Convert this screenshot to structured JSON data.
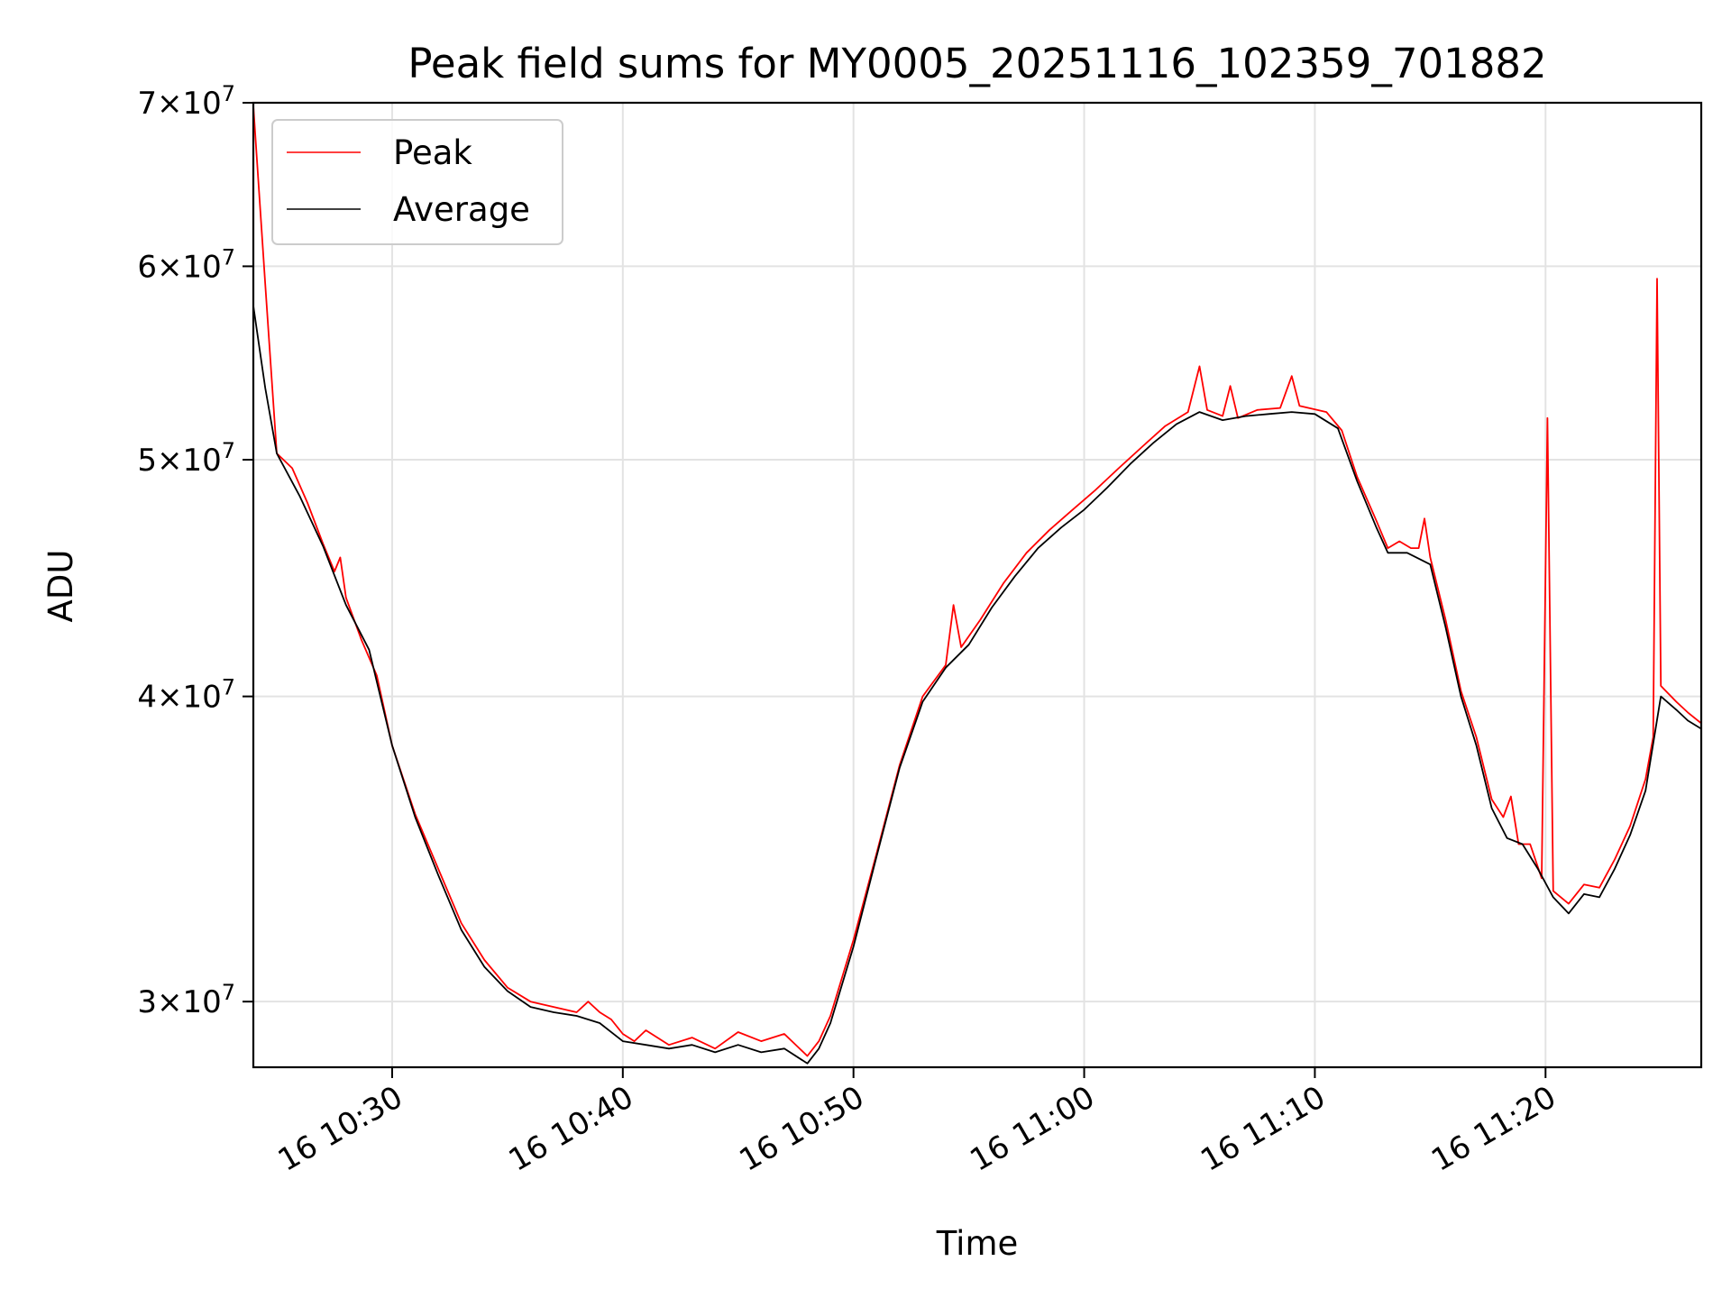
{
  "chart_data": {
    "type": "line",
    "title": "Peak field sums for MY0005_20251116_102359_701882",
    "xlabel": "Time",
    "ylabel": "ADU",
    "x_scale": "time",
    "y_scale": "log",
    "xlim": [
      "2025-11-16 10:23:59",
      "2025-11-16 11:26:45"
    ],
    "ylim": [
      28200000,
      70000000
    ],
    "x_ticks": [
      {
        "t": "2025-11-16 10:30:00",
        "label": "16 10:30"
      },
      {
        "t": "2025-11-16 10:40:00",
        "label": "16 10:40"
      },
      {
        "t": "2025-11-16 10:50:00",
        "label": "16 10:50"
      },
      {
        "t": "2025-11-16 11:00:00",
        "label": "16 11:00"
      },
      {
        "t": "2025-11-16 11:10:00",
        "label": "16 11:10"
      },
      {
        "t": "2025-11-16 11:20:00",
        "label": "16 11:20"
      }
    ],
    "y_ticks": [
      {
        "value": 30000000,
        "mant": "3",
        "exp": "7"
      },
      {
        "value": 40000000,
        "mant": "4",
        "exp": "7"
      },
      {
        "value": 50000000,
        "mant": "5",
        "exp": "7"
      },
      {
        "value": 60000000,
        "mant": "6",
        "exp": "7"
      },
      {
        "value": 70000000,
        "mant": "7",
        "exp": "7"
      }
    ],
    "grid": true,
    "legend": "top-left",
    "series": [
      {
        "name": "Peak",
        "color": "#ff0000",
        "points": [
          [
            "2025-11-16 10:23:59",
            69800000
          ],
          [
            "2025-11-16 10:24:30",
            59000000
          ],
          [
            "2025-11-16 10:25:00",
            50300000
          ],
          [
            "2025-11-16 10:25:40",
            49600000
          ],
          [
            "2025-11-16 10:26:20",
            48000000
          ],
          [
            "2025-11-16 10:27:00",
            46200000
          ],
          [
            "2025-11-16 10:27:30",
            45000000
          ],
          [
            "2025-11-16 10:27:45",
            45600000
          ],
          [
            "2025-11-16 10:28:00",
            43900000
          ],
          [
            "2025-11-16 10:28:40",
            42200000
          ],
          [
            "2025-11-16 10:29:20",
            40800000
          ],
          [
            "2025-11-16 10:30:00",
            38200000
          ],
          [
            "2025-11-16 10:31:00",
            35800000
          ],
          [
            "2025-11-16 10:32:00",
            34000000
          ],
          [
            "2025-11-16 10:33:00",
            32300000
          ],
          [
            "2025-11-16 10:34:00",
            31200000
          ],
          [
            "2025-11-16 10:35:00",
            30400000
          ],
          [
            "2025-11-16 10:36:00",
            30000000
          ],
          [
            "2025-11-16 10:37:00",
            29850000
          ],
          [
            "2025-11-16 10:38:00",
            29700000
          ],
          [
            "2025-11-16 10:38:30",
            30000000
          ],
          [
            "2025-11-16 10:39:00",
            29700000
          ],
          [
            "2025-11-16 10:39:30",
            29500000
          ],
          [
            "2025-11-16 10:40:00",
            29100000
          ],
          [
            "2025-11-16 10:40:30",
            28900000
          ],
          [
            "2025-11-16 10:41:00",
            29200000
          ],
          [
            "2025-11-16 10:42:00",
            28800000
          ],
          [
            "2025-11-16 10:43:00",
            29000000
          ],
          [
            "2025-11-16 10:44:00",
            28700000
          ],
          [
            "2025-11-16 10:45:00",
            29150000
          ],
          [
            "2025-11-16 10:46:00",
            28900000
          ],
          [
            "2025-11-16 10:47:00",
            29100000
          ],
          [
            "2025-11-16 10:48:00",
            28500000
          ],
          [
            "2025-11-16 10:48:30",
            28900000
          ],
          [
            "2025-11-16 10:49:00",
            29600000
          ],
          [
            "2025-11-16 10:50:00",
            31800000
          ],
          [
            "2025-11-16 10:51:00",
            34500000
          ],
          [
            "2025-11-16 10:52:00",
            37500000
          ],
          [
            "2025-11-16 10:53:00",
            40000000
          ],
          [
            "2025-11-16 10:54:00",
            41200000
          ],
          [
            "2025-11-16 10:54:20",
            43600000
          ],
          [
            "2025-11-16 10:54:40",
            41900000
          ],
          [
            "2025-11-16 10:55:30",
            43000000
          ],
          [
            "2025-11-16 10:56:30",
            44500000
          ],
          [
            "2025-11-16 10:57:30",
            45800000
          ],
          [
            "2025-11-16 10:58:30",
            46800000
          ],
          [
            "2025-11-16 10:59:30",
            47700000
          ],
          [
            "2025-11-16 11:00:30",
            48600000
          ],
          [
            "2025-11-16 11:01:30",
            49600000
          ],
          [
            "2025-11-16 11:02:30",
            50600000
          ],
          [
            "2025-11-16 11:03:30",
            51600000
          ],
          [
            "2025-11-16 11:04:30",
            52300000
          ],
          [
            "2025-11-16 11:05:00",
            54600000
          ],
          [
            "2025-11-16 11:05:20",
            52400000
          ],
          [
            "2025-11-16 11:06:00",
            52100000
          ],
          [
            "2025-11-16 11:06:20",
            53600000
          ],
          [
            "2025-11-16 11:06:40",
            52000000
          ],
          [
            "2025-11-16 11:07:30",
            52400000
          ],
          [
            "2025-11-16 11:08:30",
            52500000
          ],
          [
            "2025-11-16 11:09:00",
            54100000
          ],
          [
            "2025-11-16 11:09:20",
            52600000
          ],
          [
            "2025-11-16 11:10:30",
            52300000
          ],
          [
            "2025-11-16 11:11:10",
            51400000
          ],
          [
            "2025-11-16 11:11:50",
            49200000
          ],
          [
            "2025-11-16 11:12:40",
            47200000
          ],
          [
            "2025-11-16 11:13:10",
            46000000
          ],
          [
            "2025-11-16 11:13:40",
            46300000
          ],
          [
            "2025-11-16 11:14:10",
            46000000
          ],
          [
            "2025-11-16 11:14:30",
            46000000
          ],
          [
            "2025-11-16 11:14:45",
            47300000
          ],
          [
            "2025-11-16 11:15:00",
            45600000
          ],
          [
            "2025-11-16 11:15:40",
            43000000
          ],
          [
            "2025-11-16 11:16:20",
            40200000
          ],
          [
            "2025-11-16 11:17:00",
            38500000
          ],
          [
            "2025-11-16 11:17:40",
            36300000
          ],
          [
            "2025-11-16 11:18:10",
            35700000
          ],
          [
            "2025-11-16 11:18:30",
            36400000
          ],
          [
            "2025-11-16 11:18:50",
            34800000
          ],
          [
            "2025-11-16 11:19:20",
            34800000
          ],
          [
            "2025-11-16 11:19:50",
            33700000
          ],
          [
            "2025-11-16 11:20:05",
            52000000
          ],
          [
            "2025-11-16 11:20:20",
            33300000
          ],
          [
            "2025-11-16 11:21:00",
            32900000
          ],
          [
            "2025-11-16 11:21:40",
            33500000
          ],
          [
            "2025-11-16 11:22:20",
            33400000
          ],
          [
            "2025-11-16 11:23:00",
            34300000
          ],
          [
            "2025-11-16 11:23:40",
            35400000
          ],
          [
            "2025-11-16 11:24:20",
            37000000
          ],
          [
            "2025-11-16 11:24:40",
            38500000
          ],
          [
            "2025-11-16 11:24:50",
            59300000
          ],
          [
            "2025-11-16 11:25:00",
            40400000
          ],
          [
            "2025-11-16 11:25:40",
            39800000
          ],
          [
            "2025-11-16 11:26:10",
            39400000
          ],
          [
            "2025-11-16 11:26:45",
            39000000
          ]
        ]
      },
      {
        "name": "Average",
        "color": "#000000",
        "points": [
          [
            "2025-11-16 10:23:59",
            57800000
          ],
          [
            "2025-11-16 10:24:30",
            53500000
          ],
          [
            "2025-11-16 10:25:00",
            50300000
          ],
          [
            "2025-11-16 10:26:00",
            48300000
          ],
          [
            "2025-11-16 10:27:00",
            46100000
          ],
          [
            "2025-11-16 10:28:00",
            43600000
          ],
          [
            "2025-11-16 10:29:00",
            41800000
          ],
          [
            "2025-11-16 10:30:00",
            38200000
          ],
          [
            "2025-11-16 10:31:00",
            35700000
          ],
          [
            "2025-11-16 10:32:00",
            33800000
          ],
          [
            "2025-11-16 10:33:00",
            32100000
          ],
          [
            "2025-11-16 10:34:00",
            31000000
          ],
          [
            "2025-11-16 10:35:00",
            30300000
          ],
          [
            "2025-11-16 10:36:00",
            29850000
          ],
          [
            "2025-11-16 10:37:00",
            29700000
          ],
          [
            "2025-11-16 10:38:00",
            29600000
          ],
          [
            "2025-11-16 10:39:00",
            29400000
          ],
          [
            "2025-11-16 10:40:00",
            28900000
          ],
          [
            "2025-11-16 10:41:00",
            28800000
          ],
          [
            "2025-11-16 10:42:00",
            28700000
          ],
          [
            "2025-11-16 10:43:00",
            28800000
          ],
          [
            "2025-11-16 10:44:00",
            28600000
          ],
          [
            "2025-11-16 10:45:00",
            28800000
          ],
          [
            "2025-11-16 10:46:00",
            28600000
          ],
          [
            "2025-11-16 10:47:00",
            28700000
          ],
          [
            "2025-11-16 10:48:00",
            28300000
          ],
          [
            "2025-11-16 10:48:30",
            28700000
          ],
          [
            "2025-11-16 10:49:00",
            29400000
          ],
          [
            "2025-11-16 10:50:00",
            31600000
          ],
          [
            "2025-11-16 10:51:00",
            34400000
          ],
          [
            "2025-11-16 10:52:00",
            37400000
          ],
          [
            "2025-11-16 10:53:00",
            39800000
          ],
          [
            "2025-11-16 10:54:00",
            41100000
          ],
          [
            "2025-11-16 10:55:00",
            42000000
          ],
          [
            "2025-11-16 10:56:00",
            43500000
          ],
          [
            "2025-11-16 10:57:00",
            44800000
          ],
          [
            "2025-11-16 10:58:00",
            46000000
          ],
          [
            "2025-11-16 10:59:00",
            46900000
          ],
          [
            "2025-11-16 11:00:00",
            47700000
          ],
          [
            "2025-11-16 11:01:00",
            48700000
          ],
          [
            "2025-11-16 11:02:00",
            49800000
          ],
          [
            "2025-11-16 11:03:00",
            50800000
          ],
          [
            "2025-11-16 11:04:00",
            51700000
          ],
          [
            "2025-11-16 11:05:00",
            52300000
          ],
          [
            "2025-11-16 11:06:00",
            51900000
          ],
          [
            "2025-11-16 11:07:00",
            52100000
          ],
          [
            "2025-11-16 11:08:00",
            52200000
          ],
          [
            "2025-11-16 11:09:00",
            52300000
          ],
          [
            "2025-11-16 11:10:00",
            52200000
          ],
          [
            "2025-11-16 11:11:00",
            51500000
          ],
          [
            "2025-11-16 11:11:50",
            49000000
          ],
          [
            "2025-11-16 11:12:40",
            46900000
          ],
          [
            "2025-11-16 11:13:10",
            45800000
          ],
          [
            "2025-11-16 11:14:00",
            45800000
          ],
          [
            "2025-11-16 11:15:00",
            45300000
          ],
          [
            "2025-11-16 11:15:40",
            42700000
          ],
          [
            "2025-11-16 11:16:20",
            40000000
          ],
          [
            "2025-11-16 11:17:00",
            38200000
          ],
          [
            "2025-11-16 11:17:40",
            36000000
          ],
          [
            "2025-11-16 11:18:20",
            35000000
          ],
          [
            "2025-11-16 11:19:00",
            34800000
          ],
          [
            "2025-11-16 11:19:40",
            34000000
          ],
          [
            "2025-11-16 11:20:20",
            33100000
          ],
          [
            "2025-11-16 11:21:00",
            32600000
          ],
          [
            "2025-11-16 11:21:40",
            33200000
          ],
          [
            "2025-11-16 11:22:20",
            33100000
          ],
          [
            "2025-11-16 11:23:00",
            34000000
          ],
          [
            "2025-11-16 11:23:40",
            35100000
          ],
          [
            "2025-11-16 11:24:20",
            36600000
          ],
          [
            "2025-11-16 11:25:00",
            40000000
          ],
          [
            "2025-11-16 11:25:40",
            39500000
          ],
          [
            "2025-11-16 11:26:10",
            39100000
          ],
          [
            "2025-11-16 11:26:45",
            38800000
          ]
        ]
      }
    ]
  }
}
